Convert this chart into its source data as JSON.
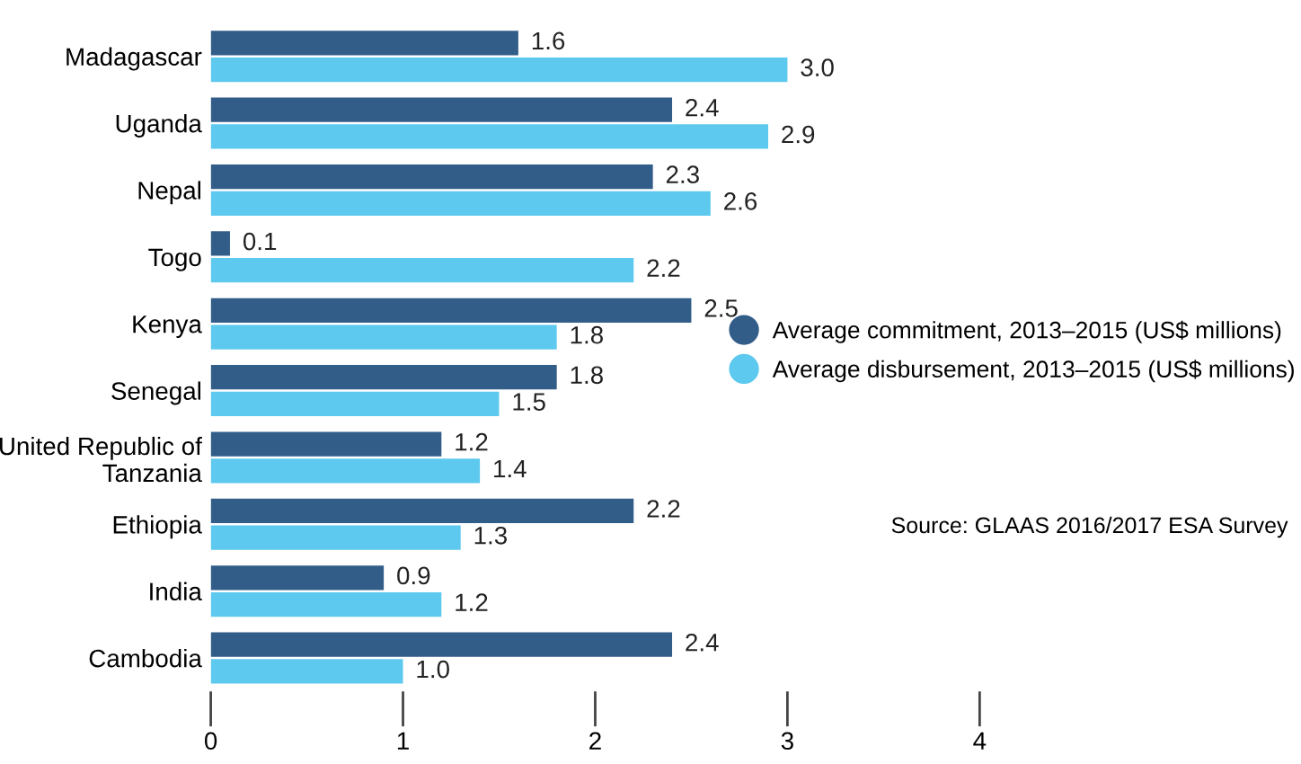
{
  "chart_data": {
    "type": "bar",
    "orientation": "horizontal",
    "categories": [
      "Madagascar",
      "Uganda",
      "Nepal",
      "Togo",
      "Kenya",
      "Senegal",
      "United Republic of\nTanzania",
      "Ethiopia",
      "India",
      "Cambodia"
    ],
    "series": [
      {
        "name": "Average commitment, 2013–2015 (US$ millions)",
        "color": "#325d88",
        "values": [
          1.6,
          2.4,
          2.3,
          0.1,
          2.5,
          1.8,
          1.2,
          2.2,
          0.9,
          2.4
        ],
        "value_labels": [
          "1.6",
          "2.4",
          "2.3",
          "0.1",
          "2.5",
          "1.8",
          "1.2",
          "2.2",
          "0.9",
          "2.4"
        ]
      },
      {
        "name": "Average disbursement, 2013–2015 (US$ millions)",
        "color": "#5ec9ef",
        "values": [
          3.0,
          2.9,
          2.6,
          2.2,
          1.8,
          1.5,
          1.4,
          1.3,
          1.2,
          1.0
        ],
        "value_labels": [
          "3.0",
          "2.9",
          "2.6",
          "2.2",
          "1.8",
          "1.5",
          "1.4",
          "1.3",
          "1.2",
          "1.0"
        ]
      }
    ],
    "xlim": [
      0,
      4
    ],
    "xticks": [
      0,
      1,
      2,
      3,
      4
    ],
    "legend": "right",
    "grid": false,
    "marker": "circle",
    "annotations": [
      "Source: GLAAS 2016/2017 ESA Survey"
    ]
  }
}
